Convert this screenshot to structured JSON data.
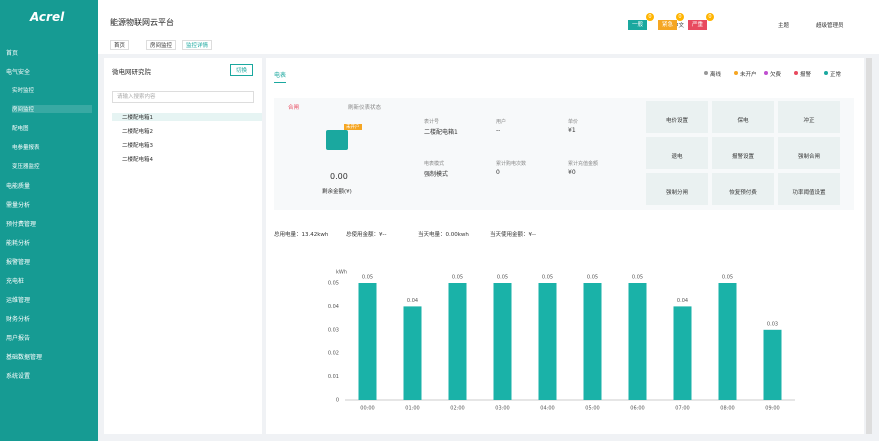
{
  "sidebar": {
    "logo": "Acrel",
    "menu": [
      "首页",
      "电气安全",
      "电能质量",
      "需量分析",
      "预付费管理",
      "能耗分析",
      "报警管理",
      "充电桩",
      "运维管理",
      "财务分析",
      "用户报告",
      "基础数据管理",
      "系统设置"
    ],
    "submenu": [
      "实时监控",
      "房间监控",
      "配电图",
      "电参量报表",
      "变压器监控"
    ]
  },
  "header": {
    "title": "能源物联网云平台",
    "alarms": [
      {
        "label": "一般",
        "count": "0",
        "color": "#1aa89f"
      },
      {
        "label": "紧急",
        "count": "0",
        "color": "#f5a623"
      },
      {
        "label": "严重",
        "count": "0",
        "color": "#e84a5f"
      }
    ],
    "language": "中文",
    "theme": "主题",
    "user": "超级管理员"
  },
  "tabs": [
    "首页",
    "房间监控",
    "监控详情"
  ],
  "tree": {
    "title": "微电网研究院",
    "switch": "切换",
    "search": "请输入搜索内容",
    "items": [
      "二楼配电箱1",
      "二楼配电箱2",
      "二楼配电箱3",
      "二楼配电箱4"
    ]
  },
  "panel": {
    "tab": "电表",
    "statuses": [
      {
        "label": "离线",
        "color": "#999"
      },
      {
        "label": "未开户",
        "color": "#f5a623"
      },
      {
        "label": "欠费",
        "color": "#c04fd0"
      },
      {
        "label": "报警",
        "color": "#e84a5f"
      },
      {
        "label": "正常",
        "color": "#1aa89f"
      }
    ],
    "switch_state": "合闸",
    "refresh": "刷新仪表状态",
    "meter_badge": "未开户",
    "balance": "0.00",
    "balance_label": "剩余金额(¥)",
    "fields": [
      {
        "label": "表计号",
        "value": "二楼配电箱1"
      },
      {
        "label": "用户",
        "value": "--"
      },
      {
        "label": "单价",
        "value": "¥1"
      },
      {
        "label": "电表模式",
        "value": "强制模式"
      },
      {
        "label": "累计购电次数",
        "value": "0"
      },
      {
        "label": "累计充值金额",
        "value": "¥0"
      }
    ],
    "actions": [
      "电价设置",
      "保电",
      "冲正",
      "退电",
      "报警设置",
      "强制合闸",
      "强制分闸",
      "恢复预付费",
      "功率阈值设置"
    ],
    "summary": [
      "总用电量：13.42kwh",
      "总使用金额：¥--",
      "当天电量：0.00kwh",
      "当天使用金额：¥--"
    ]
  },
  "chart_data": {
    "type": "bar",
    "y_label": "kWh",
    "categories": [
      "00:00",
      "01:00",
      "02:00",
      "03:00",
      "04:00",
      "05:00",
      "06:00",
      "07:00",
      "08:00",
      "09:00"
    ],
    "values": [
      0.05,
      0.04,
      0.05,
      0.05,
      0.05,
      0.05,
      0.05,
      0.04,
      0.05,
      0.03
    ],
    "color": "#1ab2a8",
    "ylim": [
      0,
      0.05
    ],
    "yticks": [
      0,
      0.01,
      0.02,
      0.03,
      0.04,
      0.05
    ],
    "grid": false
  }
}
